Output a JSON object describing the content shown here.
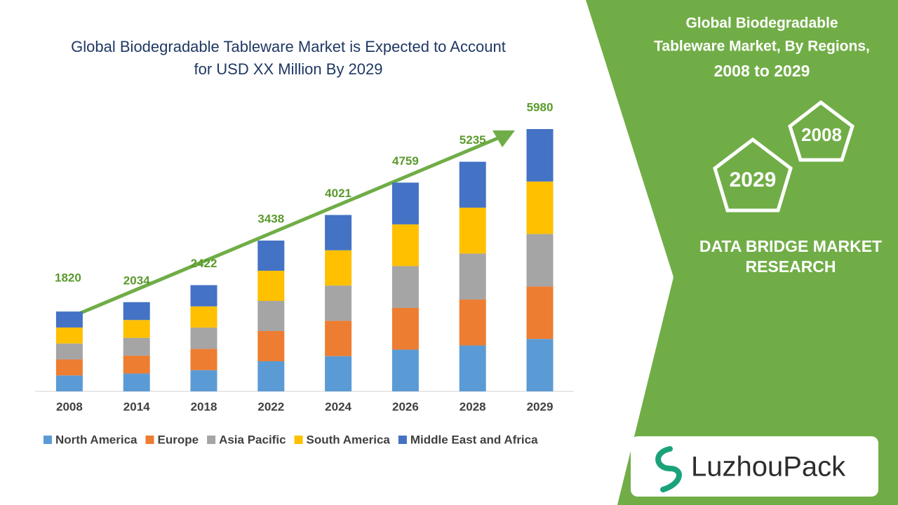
{
  "chart_data": {
    "type": "stacked_bar",
    "title": [
      "Global Biodegradable Tableware Market is Expected to Account",
      "for USD XX Million By 2029"
    ],
    "categories": [
      "2008",
      "2014",
      "2018",
      "2022",
      "2024",
      "2026",
      "2028",
      "2029"
    ],
    "totals": [
      1820,
      2034,
      2422,
      3438,
      4021,
      4759,
      5235,
      5980
    ],
    "series": [
      {
        "name": "North America",
        "color": "#5b9bd5",
        "values": [
          364,
          406.8,
          484.4,
          687.6,
          804.2,
          951.8,
          1047,
          1196
        ]
      },
      {
        "name": "Europe",
        "color": "#ed7d31",
        "values": [
          364,
          406.8,
          484.4,
          687.6,
          804.2,
          951.8,
          1047,
          1196
        ]
      },
      {
        "name": "Asia Pacific",
        "color": "#a5a5a5",
        "values": [
          364,
          406.8,
          484.4,
          687.6,
          804.2,
          951.8,
          1047,
          1196
        ]
      },
      {
        "name": "South America",
        "color": "#ffc000",
        "values": [
          364,
          406.8,
          484.4,
          687.6,
          804.2,
          951.8,
          1047,
          1196
        ]
      },
      {
        "name": "Middle East and Africa",
        "color": "#4472c4",
        "values": [
          364,
          406.8,
          484.4,
          687.6,
          804.2,
          951.8,
          1047,
          1196
        ]
      }
    ]
  },
  "panel": {
    "title": [
      "Global Biodegradable",
      "Tableware Market, By Regions,",
      "2008 to 2029"
    ],
    "badges": [
      "2008",
      "2029"
    ],
    "brand": [
      "DATA BRIDGE MARKET",
      "RESEARCH"
    ],
    "logo": "LuzhouPack"
  }
}
